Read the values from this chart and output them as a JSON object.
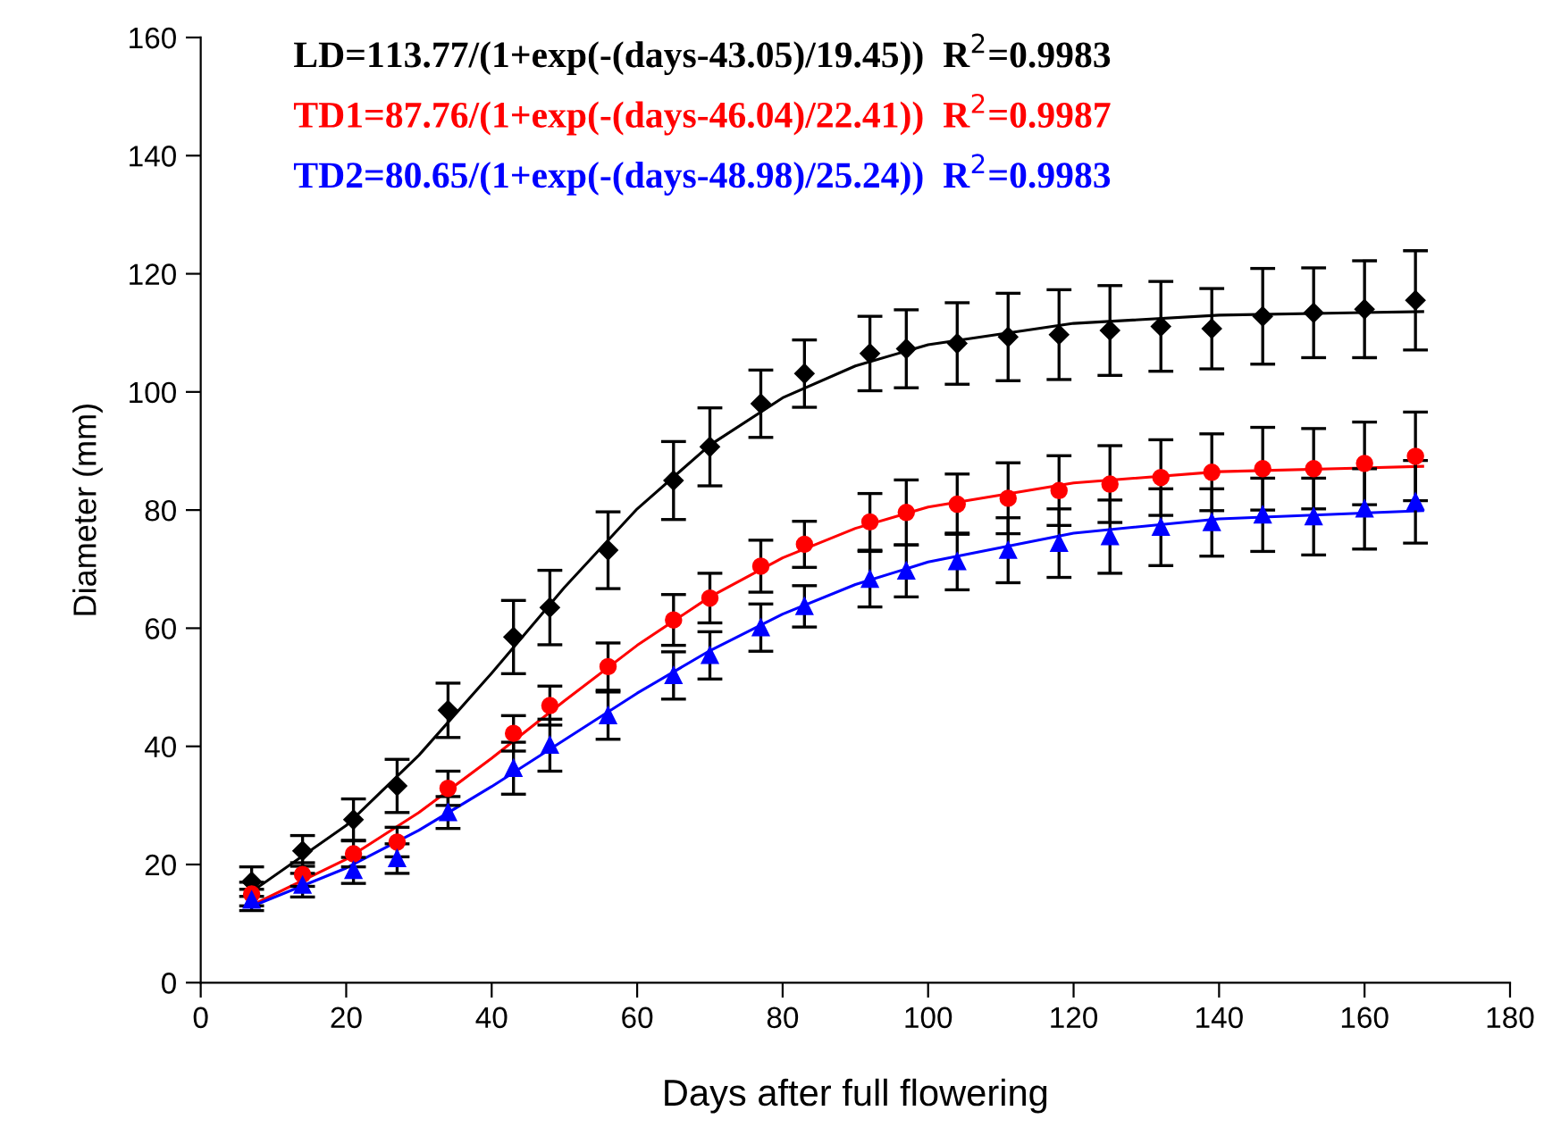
{
  "chart_data": {
    "type": "scatter",
    "xlabel": "Days after full flowering",
    "ylabel": "Diameter (mm)",
    "xlim": [
      0,
      180
    ],
    "ylim": [
      0,
      160
    ],
    "xticks": [
      0,
      20,
      40,
      60,
      80,
      100,
      120,
      140,
      160,
      180
    ],
    "yticks": [
      0,
      20,
      40,
      60,
      80,
      100,
      120,
      140,
      160
    ],
    "grid": false,
    "legend": false,
    "series": [
      {
        "color": "#000000",
        "marker": "diamond",
        "x": [
          7,
          14,
          21,
          27,
          34,
          43,
          48,
          56,
          65,
          70,
          77,
          83,
          92,
          97,
          104,
          111,
          118,
          125,
          132,
          139,
          146,
          153,
          160,
          167
        ],
        "values": [
          17.1,
          22.3,
          27.6,
          33.3,
          46.1,
          58.5,
          63.5,
          73.2,
          85,
          90.7,
          98,
          103.1,
          106.5,
          107.3,
          108.2,
          109.3,
          109.7,
          110.4,
          111.1,
          110.7,
          112.8,
          113.4,
          114.0,
          115.5
        ],
        "errors": [
          2.5,
          2.6,
          3.5,
          4.5,
          4.6,
          6.2,
          6.3,
          6.5,
          6.6,
          6.6,
          5.7,
          5.7,
          6.3,
          6.6,
          6.9,
          7.4,
          7.6,
          7.6,
          7.6,
          6.8,
          8.1,
          7.6,
          8.2,
          8.4
        ]
      },
      {
        "color": "#ff0000",
        "marker": "circle",
        "x": [
          7,
          14,
          21,
          27,
          34,
          43,
          48,
          56,
          65,
          70,
          77,
          83,
          92,
          97,
          104,
          111,
          118,
          125,
          132,
          139,
          146,
          153,
          160,
          167
        ],
        "values": [
          15,
          18.3,
          21.8,
          23.8,
          32.9,
          42.2,
          46.9,
          53.5,
          61.4,
          65.1,
          70.5,
          74.2,
          78.0,
          79.6,
          81.0,
          82.0,
          83.3,
          84.4,
          85.5,
          86.4,
          87.0,
          87.0,
          87.9,
          89.1
        ],
        "errors": [
          2,
          2,
          2.2,
          2.5,
          2.9,
          3,
          3.3,
          4,
          4.3,
          4.2,
          4.4,
          3.9,
          4.8,
          5.5,
          5.1,
          6,
          5.9,
          6.5,
          6.4,
          6.5,
          7,
          6.8,
          7,
          7.5
        ]
      },
      {
        "color": "#0000ff",
        "marker": "triangle",
        "x": [
          7,
          14,
          21,
          27,
          34,
          43,
          48,
          56,
          65,
          70,
          77,
          83,
          92,
          97,
          104,
          111,
          118,
          125,
          132,
          139,
          146,
          153,
          160,
          167
        ],
        "values": [
          14,
          16.5,
          19,
          21,
          28.8,
          36.3,
          40.2,
          45.2,
          52,
          55.4,
          60.1,
          63.7,
          68.3,
          69.7,
          71.3,
          73.2,
          74.4,
          75.5,
          77.1,
          77.9,
          79.2,
          78.9,
          80.2,
          81.4
        ],
        "errors": [
          1.8,
          2,
          2.2,
          2.5,
          2.7,
          4.4,
          4.4,
          4,
          4,
          4,
          4,
          3.5,
          4.7,
          4.4,
          4.8,
          5.5,
          5.8,
          6.2,
          6.5,
          5.7,
          6.2,
          6.5,
          6.8,
          7
        ]
      },
      {
        "type": "line",
        "name": "LD=113.77/(1+exp(-(days-43.05)/19.45))  R$^{2}$=0.9983",
        "color": "#000000",
        "marker": "none",
        "x": [
          7,
          20,
          30,
          40,
          50,
          60,
          70,
          80,
          90,
          100,
          120,
          140,
          168
        ],
        "values": [
          15.4,
          26.6,
          38.5,
          52.4,
          66.9,
          80.2,
          91.0,
          99.0,
          104.4,
          108.0,
          111.6,
          113.0,
          113.6
        ]
      },
      {
        "type": "line",
        "name": "TD1=87.76/(1+exp(-(days-46.04)/22.41))  R$^{2}$=0.9987",
        "color": "#ff0000",
        "marker": "none",
        "x": [
          7,
          20,
          30,
          40,
          50,
          60,
          70,
          80,
          90,
          100,
          120,
          140,
          168
        ],
        "values": [
          13.1,
          20.9,
          28.8,
          38.0,
          47.7,
          57.1,
          65.3,
          71.9,
          76.9,
          80.5,
          84.6,
          86.5,
          87.4
        ]
      },
      {
        "type": "line",
        "name": "TD2=80.65/(1+exp(-(days-48.98)/25.24))  R$^{2}$=0.9983",
        "color": "#0000ff",
        "marker": "none",
        "x": [
          7,
          20,
          30,
          40,
          50,
          60,
          70,
          80,
          90,
          100,
          120,
          140,
          168
        ],
        "values": [
          12.9,
          19.4,
          25.8,
          33.2,
          41.1,
          49.0,
          56.2,
          62.4,
          67.4,
          71.2,
          76.1,
          78.5,
          79.9
        ]
      }
    ]
  }
}
